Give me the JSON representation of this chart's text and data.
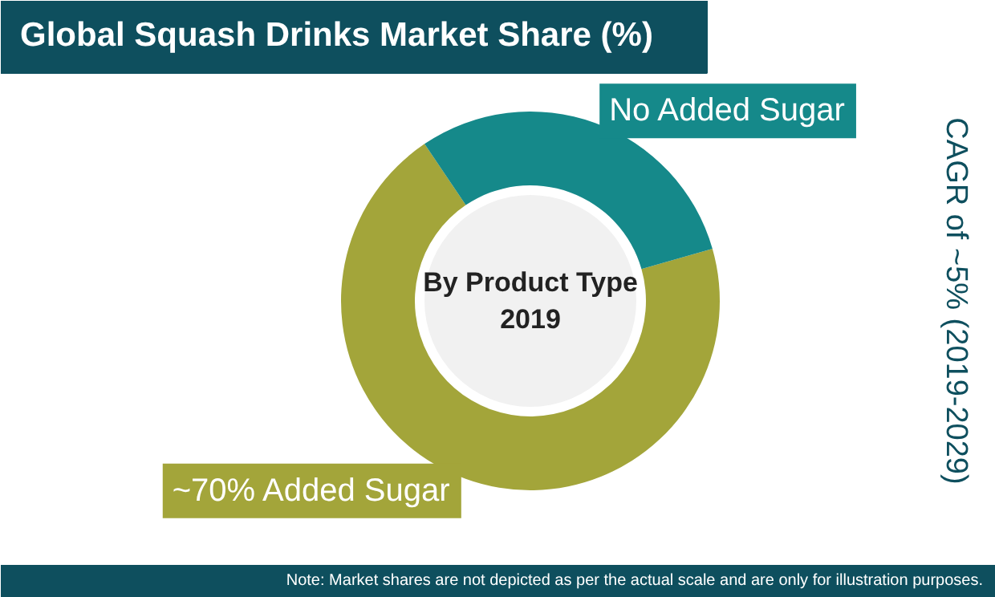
{
  "chart_data": {
    "type": "donut",
    "title": "Global Squash Drinks Market Share (%)",
    "subtitle": "By Product Type\n2019",
    "categories": [
      "Added Sugar",
      "No Added Sugar"
    ],
    "values": [
      70,
      30
    ],
    "colors": [
      "#a3a53a",
      "#15898a"
    ],
    "value_labels": [
      "~70%",
      null
    ],
    "annotations": [
      "CAGR of ~5% (2019-2029)",
      "Note: Market shares are not depicted as per the actual scale and are only for illustration purposes."
    ]
  }
}
